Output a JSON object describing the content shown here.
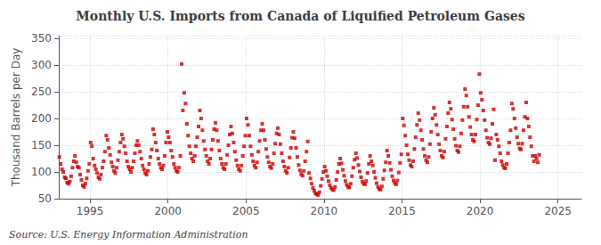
{
  "chart_data": {
    "type": "scatter",
    "title": "Monthly U.S. Imports from Canada of Liquified Petroleum Gases",
    "ylabel": "Thousand Barrels per Day",
    "annotation": "Source: U.S. Energy Information Administration",
    "color": "#cc0000",
    "marker": "square",
    "grid": true,
    "xlim": [
      1993.0,
      2026.5
    ],
    "ylim": [
      50,
      355
    ],
    "xticks": [
      1995,
      2000,
      2005,
      2010,
      2015,
      2020,
      2025
    ],
    "yticks": [
      50,
      100,
      150,
      200,
      250,
      300,
      350
    ],
    "x": [
      1993.0416666666667,
      1993.125,
      1993.2083333333333,
      1993.2916666666667,
      1993.375,
      1993.4583333333333,
      1993.5416666666667,
      1993.625,
      1993.7083333333333,
      1993.7916666666667,
      1993.875,
      1993.9583333333333,
      1994.0416666666667,
      1994.125,
      1994.2083333333333,
      1994.2916666666667,
      1994.375,
      1994.4583333333333,
      1994.5416666666667,
      1994.625,
      1994.7083333333333,
      1994.7916666666667,
      1994.875,
      1994.9583333333333,
      1995.0416666666667,
      1995.125,
      1995.2083333333333,
      1995.2916666666667,
      1995.375,
      1995.4583333333333,
      1995.5416666666667,
      1995.625,
      1995.7083333333333,
      1995.7916666666667,
      1995.875,
      1995.9583333333333,
      1996.0416666666667,
      1996.125,
      1996.2083333333333,
      1996.2916666666667,
      1996.375,
      1996.4583333333333,
      1996.5416666666667,
      1996.625,
      1996.7083333333333,
      1996.7916666666667,
      1996.875,
      1996.9583333333333,
      1997.0416666666667,
      1997.125,
      1997.2083333333333,
      1997.2916666666667,
      1997.375,
      1997.4583333333333,
      1997.5416666666667,
      1997.625,
      1997.7083333333333,
      1997.7916666666667,
      1997.875,
      1997.9583333333333,
      1998.0416666666667,
      1998.125,
      1998.2083333333333,
      1998.2916666666667,
      1998.375,
      1998.4583333333333,
      1998.5416666666667,
      1998.625,
      1998.7083333333333,
      1998.7916666666667,
      1998.875,
      1998.9583333333333,
      1999.0416666666667,
      1999.125,
      1999.2083333333333,
      1999.2916666666667,
      1999.375,
      1999.4583333333333,
      1999.5416666666667,
      1999.625,
      1999.7083333333333,
      1999.7916666666667,
      1999.875,
      1999.9583333333333,
      2000.0416666666667,
      2000.125,
      2000.2083333333333,
      2000.2916666666667,
      2000.375,
      2000.4583333333333,
      2000.5416666666667,
      2000.625,
      2000.7083333333333,
      2000.7916666666667,
      2000.875,
      2000.9583333333333,
      2001.0416666666667,
      2001.125,
      2001.2083333333333,
      2001.2916666666667,
      2001.375,
      2001.4583333333333,
      2001.5416666666667,
      2001.625,
      2001.7083333333333,
      2001.7916666666667,
      2001.875,
      2001.9583333333333,
      2002.0416666666667,
      2002.125,
      2002.2083333333333,
      2002.2916666666667,
      2002.375,
      2002.4583333333333,
      2002.5416666666667,
      2002.625,
      2002.7083333333333,
      2002.7916666666667,
      2002.875,
      2002.9583333333333,
      2003.0416666666667,
      2003.125,
      2003.2083333333333,
      2003.2916666666667,
      2003.375,
      2003.4583333333333,
      2003.5416666666667,
      2003.625,
      2003.7083333333333,
      2003.7916666666667,
      2003.875,
      2003.9583333333333,
      2004.0416666666667,
      2004.125,
      2004.2083333333333,
      2004.2916666666667,
      2004.375,
      2004.4583333333333,
      2004.5416666666667,
      2004.625,
      2004.7083333333333,
      2004.7916666666667,
      2004.875,
      2004.9583333333333,
      2005.0416666666667,
      2005.125,
      2005.2083333333333,
      2005.2916666666667,
      2005.375,
      2005.4583333333333,
      2005.5416666666667,
      2005.625,
      2005.7083333333333,
      2005.7916666666667,
      2005.875,
      2005.9583333333333,
      2006.0416666666667,
      2006.125,
      2006.2083333333333,
      2006.2916666666667,
      2006.375,
      2006.4583333333333,
      2006.5416666666667,
      2006.625,
      2006.7083333333333,
      2006.7916666666667,
      2006.875,
      2006.9583333333333,
      2007.0416666666667,
      2007.125,
      2007.2083333333333,
      2007.2916666666667,
      2007.375,
      2007.4583333333333,
      2007.5416666666667,
      2007.625,
      2007.7083333333333,
      2007.7916666666667,
      2007.875,
      2007.9583333333333,
      2008.0416666666667,
      2008.125,
      2008.2083333333333,
      2008.2916666666667,
      2008.375,
      2008.4583333333333,
      2008.5416666666667,
      2008.625,
      2008.7083333333333,
      2008.7916666666667,
      2008.875,
      2008.9583333333333,
      2009.0416666666667,
      2009.125,
      2009.2083333333333,
      2009.2916666666667,
      2009.375,
      2009.4583333333333,
      2009.5416666666667,
      2009.625,
      2009.7083333333333,
      2009.7916666666667,
      2009.875,
      2009.9583333333333,
      2010.0416666666667,
      2010.125,
      2010.2083333333333,
      2010.2916666666667,
      2010.375,
      2010.4583333333333,
      2010.5416666666667,
      2010.625,
      2010.7083333333333,
      2010.7916666666667,
      2010.875,
      2010.9583333333333,
      2011.0416666666667,
      2011.125,
      2011.2083333333333,
      2011.2916666666667,
      2011.375,
      2011.4583333333333,
      2011.5416666666667,
      2011.625,
      2011.7083333333333,
      2011.7916666666667,
      2011.875,
      2011.9583333333333,
      2012.0416666666667,
      2012.125,
      2012.2083333333333,
      2012.2916666666667,
      2012.375,
      2012.4583333333333,
      2012.5416666666667,
      2012.625,
      2012.7083333333333,
      2012.7916666666667,
      2012.875,
      2012.9583333333333,
      2013.0416666666667,
      2013.125,
      2013.2083333333333,
      2013.2916666666667,
      2013.375,
      2013.4583333333333,
      2013.5416666666667,
      2013.625,
      2013.7083333333333,
      2013.7916666666667,
      2013.875,
      2013.9583333333333,
      2014.0416666666667,
      2014.125,
      2014.2083333333333,
      2014.2916666666667,
      2014.375,
      2014.4583333333333,
      2014.5416666666667,
      2014.625,
      2014.7083333333333,
      2014.7916666666667,
      2014.875,
      2014.9583333333333,
      2015.0416666666667,
      2015.125,
      2015.2083333333333,
      2015.2916666666667,
      2015.375,
      2015.4583333333333,
      2015.5416666666667,
      2015.625,
      2015.7083333333333,
      2015.7916666666667,
      2015.875,
      2015.9583333333333,
      2016.0416666666667,
      2016.125,
      2016.2083333333333,
      2016.2916666666667,
      2016.375,
      2016.4583333333333,
      2016.5416666666667,
      2016.625,
      2016.7083333333333,
      2016.7916666666667,
      2016.875,
      2016.9583333333333,
      2017.0416666666667,
      2017.125,
      2017.2083333333333,
      2017.2916666666667,
      2017.375,
      2017.4583333333333,
      2017.5416666666667,
      2017.625,
      2017.7083333333333,
      2017.7916666666667,
      2017.875,
      2017.9583333333333,
      2018.0416666666667,
      2018.125,
      2018.2083333333333,
      2018.2916666666667,
      2018.375,
      2018.4583333333333,
      2018.5416666666667,
      2018.625,
      2018.7083333333333,
      2018.7916666666667,
      2018.875,
      2018.9583333333333,
      2019.0416666666667,
      2019.125,
      2019.2083333333333,
      2019.2916666666667,
      2019.375,
      2019.4583333333333,
      2019.5416666666667,
      2019.625,
      2019.7083333333333,
      2019.7916666666667,
      2019.875,
      2019.9583333333333,
      2020.0416666666667,
      2020.125,
      2020.2083333333333,
      2020.2916666666667,
      2020.375,
      2020.4583333333333,
      2020.5416666666667,
      2020.625,
      2020.7083333333333,
      2020.7916666666667,
      2020.875,
      2020.9583333333333,
      2021.0416666666667,
      2021.125,
      2021.2083333333333,
      2021.2916666666667,
      2021.375,
      2021.4583333333333,
      2021.5416666666667,
      2021.625,
      2021.7083333333333,
      2021.7916666666667,
      2021.875,
      2021.9583333333333,
      2022.0416666666667,
      2022.125,
      2022.2083333333333,
      2022.2916666666667,
      2022.375,
      2022.4583333333333,
      2022.5416666666667,
      2022.625,
      2022.7083333333333,
      2022.7916666666667,
      2022.875,
      2022.9583333333333,
      2023.0416666666667,
      2023.125,
      2023.2083333333333,
      2023.2916666666667,
      2023.375,
      2023.4583333333333,
      2023.5416666666667,
      2023.625,
      2023.7083333333333,
      2023.7916666666667
    ],
    "values": [
      128,
      115,
      105,
      100,
      90,
      88,
      80,
      78,
      82,
      92,
      108,
      120,
      130,
      118,
      110,
      108,
      95,
      85,
      75,
      72,
      78,
      88,
      102,
      115,
      155,
      148,
      125,
      112,
      105,
      98,
      90,
      87,
      95,
      108,
      120,
      138,
      168,
      160,
      145,
      132,
      118,
      110,
      102,
      98,
      108,
      122,
      138,
      155,
      170,
      162,
      148,
      135,
      120,
      110,
      105,
      100,
      108,
      120,
      135,
      150,
      158,
      150,
      138,
      125,
      112,
      105,
      98,
      95,
      102,
      115,
      128,
      142,
      180,
      170,
      155,
      140,
      125,
      115,
      108,
      105,
      112,
      130,
      155,
      175,
      165,
      155,
      140,
      128,
      115,
      108,
      102,
      100,
      108,
      130,
      302,
      215,
      248,
      228,
      190,
      168,
      148,
      135,
      125,
      120,
      130,
      148,
      165,
      185,
      215,
      200,
      178,
      158,
      142,
      130,
      120,
      115,
      125,
      142,
      160,
      180,
      192,
      178,
      158,
      140,
      125,
      115,
      108,
      105,
      115,
      132,
      150,
      170,
      185,
      172,
      155,
      138,
      122,
      112,
      105,
      102,
      112,
      130,
      148,
      168,
      200,
      188,
      168,
      148,
      132,
      120,
      112,
      108,
      118,
      138,
      158,
      178,
      190,
      178,
      160,
      143,
      128,
      118,
      110,
      107,
      115,
      135,
      153,
      172,
      182,
      170,
      152,
      135,
      120,
      110,
      102,
      98,
      108,
      127,
      145,
      164,
      175,
      163,
      145,
      128,
      113,
      103,
      96,
      93,
      102,
      120,
      138,
      157,
      98,
      88,
      78,
      70,
      65,
      60,
      58,
      57,
      62,
      74,
      87,
      100,
      110,
      102,
      92,
      83,
      75,
      70,
      67,
      66,
      72,
      85,
      100,
      115,
      125,
      116,
      104,
      93,
      83,
      76,
      72,
      71,
      78,
      92,
      108,
      123,
      135,
      126,
      113,
      101,
      90,
      82,
      78,
      77,
      83,
      98,
      115,
      130,
      120,
      112,
      100,
      89,
      79,
      72,
      68,
      67,
      73,
      87,
      103,
      118,
      140,
      130,
      117,
      104,
      92,
      84,
      79,
      77,
      84,
      99,
      117,
      133,
      200,
      187,
      168,
      150,
      133,
      122,
      113,
      110,
      120,
      143,
      165,
      188,
      210,
      197,
      178,
      160,
      143,
      130,
      122,
      118,
      128,
      152,
      175,
      200,
      220,
      207,
      188,
      170,
      152,
      140,
      130,
      127,
      138,
      162,
      185,
      210,
      230,
      218,
      198,
      180,
      162,
      149,
      140,
      137,
      148,
      172,
      197,
      222,
      255,
      243,
      222,
      203,
      184,
      170,
      160,
      157,
      170,
      198,
      225,
      283,
      248,
      235,
      215,
      197,
      178,
      164,
      155,
      152,
      163,
      190,
      217,
      122,
      170,
      160,
      148,
      135,
      120,
      113,
      108,
      107,
      115,
      135,
      155,
      178,
      228,
      218,
      200,
      182,
      165,
      153,
      144,
      142,
      153,
      178,
      203,
      230,
      200,
      185,
      165,
      148,
      130,
      120,
      130,
      125,
      118,
      132
    ]
  }
}
